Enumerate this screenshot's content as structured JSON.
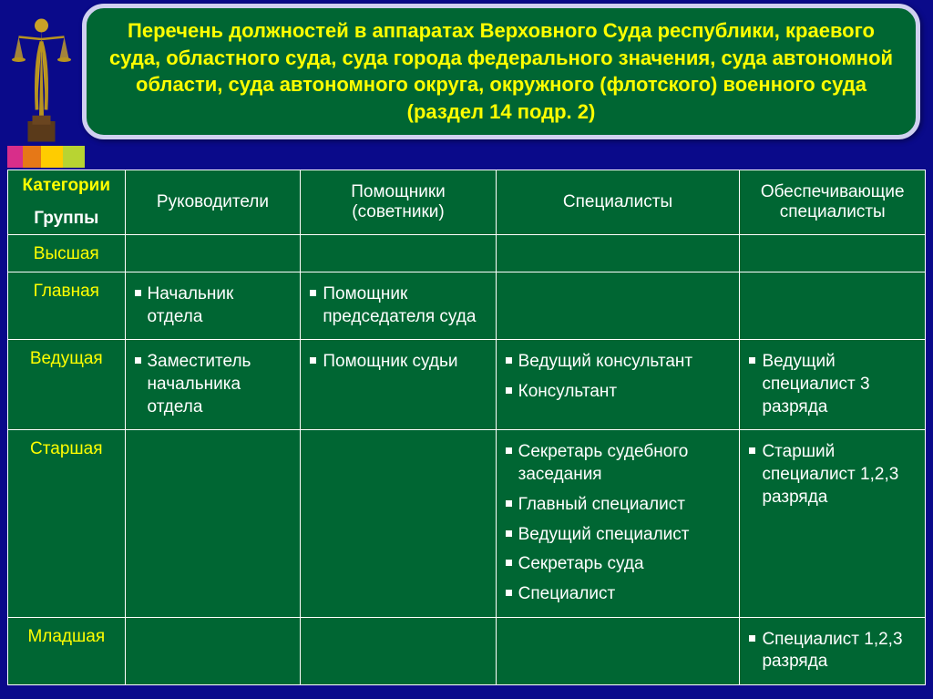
{
  "colors": {
    "page_bg": "#0a0a8a",
    "panel_bg": "#006633",
    "header_border": "#d0d0f0",
    "title_text": "#ffff00",
    "cell_text": "#ffffff",
    "cell_border": "#ffffff",
    "bars": [
      "#d82e8a",
      "#e67817",
      "#ffcc00",
      "#b8d432"
    ]
  },
  "header": {
    "title": "Перечень должностей в аппаратах Верховного Суда республики, краевого суда, областного суда, суда города федерального значения, суда автономной области, суда автономного округа, окружного (флотского) военного суда (раздел 14 подр. 2)"
  },
  "table": {
    "corner_top": "Категории",
    "corner_bottom": "Группы",
    "columns": [
      "Руководители",
      "Помощники (советники)",
      "Специалисты",
      "Обеспечивающие специалисты"
    ],
    "rows": [
      {
        "group": "Высшая",
        "cells": [
          [],
          [],
          [],
          []
        ]
      },
      {
        "group": "Главная",
        "cells": [
          [
            "Начальник отдела"
          ],
          [
            "Помощник председателя суда"
          ],
          [],
          []
        ]
      },
      {
        "group": "Ведущая",
        "cells": [
          [
            "Заместитель начальника отдела"
          ],
          [
            "Помощник судьи"
          ],
          [
            "Ведущий консультант",
            "Консультант"
          ],
          [
            "Ведущий специалист 3 разряда"
          ]
        ]
      },
      {
        "group": "Старшая",
        "cells": [
          [],
          [],
          [
            "Секретарь судебного заседания",
            "Главный специалист",
            "Ведущий специалист",
            "Секретарь суда",
            "Специалист"
          ],
          [
            "Старший специалист 1,2,3 разряда"
          ]
        ]
      },
      {
        "group": "Младшая",
        "cells": [
          [],
          [],
          [],
          [
            "Специалист 1,2,3 разряда"
          ]
        ]
      }
    ]
  }
}
